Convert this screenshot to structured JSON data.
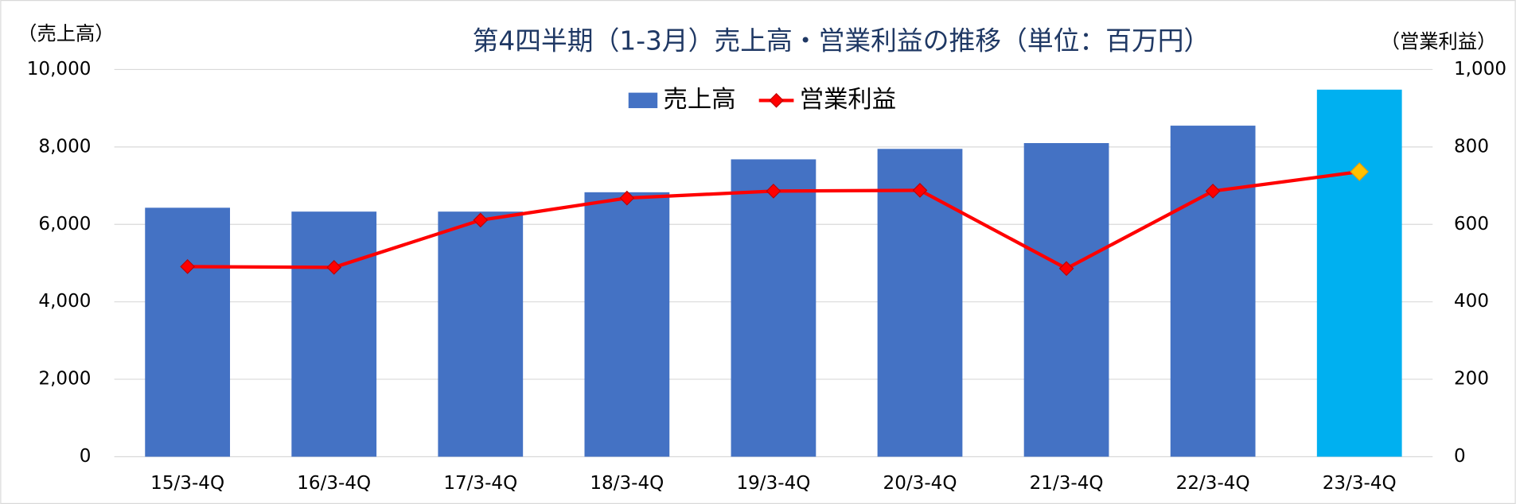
{
  "chart_data": {
    "type": "bar-line",
    "title": "第4四半期（1-3月）売上高・営業利益の推移（単位：百万円）",
    "y_label": "（売上高）",
    "y2_label": "（営業利益）",
    "categories": [
      "15/3-4Q",
      "16/3-4Q",
      "17/3-4Q",
      "18/3-4Q",
      "19/3-4Q",
      "20/3-4Q",
      "21/3-4Q",
      "22/3-4Q",
      "23/3-4Q"
    ],
    "series": [
      {
        "name": "売上高",
        "type": "bar",
        "color": "#4472c4",
        "colors": [
          "#4472c4",
          "#4472c4",
          "#4472c4",
          "#4472c4",
          "#4472c4",
          "#4472c4",
          "#4472c4",
          "#4472c4",
          "#00b0f0"
        ],
        "values": [
          6430,
          6330,
          6330,
          6830,
          7680,
          7950,
          8100,
          8550,
          9480
        ]
      },
      {
        "name": "営業利益",
        "type": "line",
        "axis": "y2",
        "color": "#ff0000",
        "marker_colors": [
          "#ff0000",
          "#ff0000",
          "#ff0000",
          "#ff0000",
          "#ff0000",
          "#ff0000",
          "#ff0000",
          "#ff0000",
          "#ffc000"
        ],
        "values": [
          491,
          489,
          611,
          668,
          686,
          688,
          486,
          686,
          736
        ]
      }
    ],
    "ylim": [
      0,
      10000
    ],
    "yticks": [
      0,
      {
        "value": 2000,
        "label": "2,000"
      },
      {
        "value": 4000,
        "label": "4,000"
      },
      {
        "value": 6000,
        "label": "6,000"
      },
      {
        "value": 8000,
        "label": "8,000"
      },
      {
        "value": 10000,
        "label": "10,000"
      }
    ],
    "y2lim": [
      0,
      1000
    ],
    "y2ticks": [
      0,
      200,
      400,
      600,
      800,
      {
        "value": 1000,
        "label": "1,000"
      }
    ],
    "grid": true,
    "legend": "top"
  }
}
